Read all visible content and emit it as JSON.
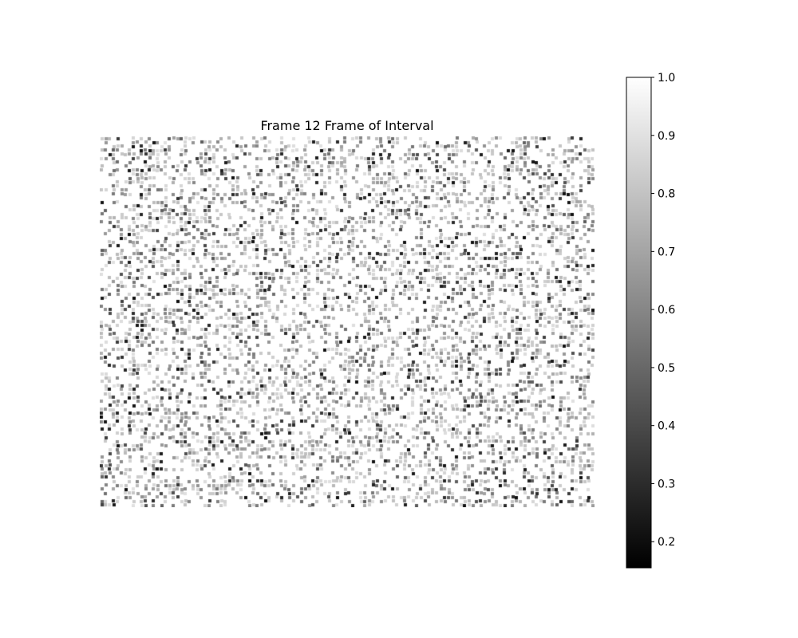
{
  "chart_data": {
    "type": "heatmap",
    "title": "Frame 12 Frame of Interval",
    "colormap": "gray",
    "axes_visible": false,
    "colorbar": {
      "range": [
        0.155,
        1.0
      ],
      "ticks": [
        0.2,
        0.3,
        0.4,
        0.5,
        0.6,
        0.7,
        0.8,
        0.9,
        1.0
      ],
      "tick_labels": [
        "0.2",
        "0.3",
        "0.4",
        "0.5",
        "0.6",
        "0.7",
        "0.8",
        "0.9",
        "1.0"
      ],
      "low_color": "#000000",
      "high_color": "#ffffff"
    }
  }
}
